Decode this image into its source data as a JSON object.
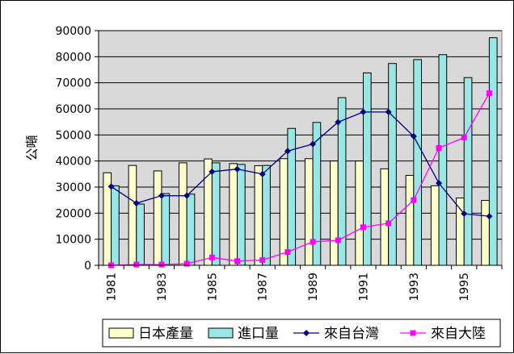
{
  "chart_data": {
    "type": "bar",
    "ylabel": "公噸",
    "ylim": [
      0,
      90000
    ],
    "yticks": [
      0,
      10000,
      20000,
      30000,
      40000,
      50000,
      60000,
      70000,
      80000,
      90000
    ],
    "x": [
      1981,
      1982,
      1983,
      1984,
      1985,
      1986,
      1987,
      1988,
      1989,
      1990,
      1991,
      1992,
      1993,
      1994,
      1995,
      1996
    ],
    "xtick_labels": [
      "1981",
      "1983",
      "1985",
      "1987",
      "1989",
      "1991",
      "1993",
      "1995"
    ],
    "grid": "horizontal",
    "legend_position": "bottom",
    "series": [
      {
        "name": "日本產量",
        "kind": "bar",
        "color": "#ffffcc",
        "values": [
          35500,
          38300,
          36200,
          39300,
          40800,
          39000,
          38200,
          40900,
          40900,
          40000,
          40000,
          37000,
          34500,
          30500,
          25800,
          24900
        ]
      },
      {
        "name": "進口量",
        "kind": "bar",
        "color": "#99e6e6",
        "values": [
          30500,
          23500,
          27500,
          27300,
          39300,
          38700,
          38300,
          52500,
          54800,
          64300,
          73800,
          77400,
          78900,
          80800,
          72000,
          87300
        ]
      },
      {
        "name": "來自台灣",
        "kind": "line",
        "color": "#000080",
        "marker": "diamond",
        "values": [
          30200,
          23800,
          26700,
          26700,
          35900,
          36900,
          35000,
          43800,
          46500,
          54900,
          58800,
          58800,
          49500,
          31500,
          19800,
          18800
        ]
      },
      {
        "name": "來自大陸",
        "kind": "line",
        "color": "#ff00ff",
        "marker": "square",
        "values": [
          0,
          300,
          300,
          600,
          3000,
          1600,
          2000,
          5100,
          9000,
          9600,
          14600,
          16100,
          25000,
          45000,
          49000,
          66000
        ]
      }
    ]
  }
}
